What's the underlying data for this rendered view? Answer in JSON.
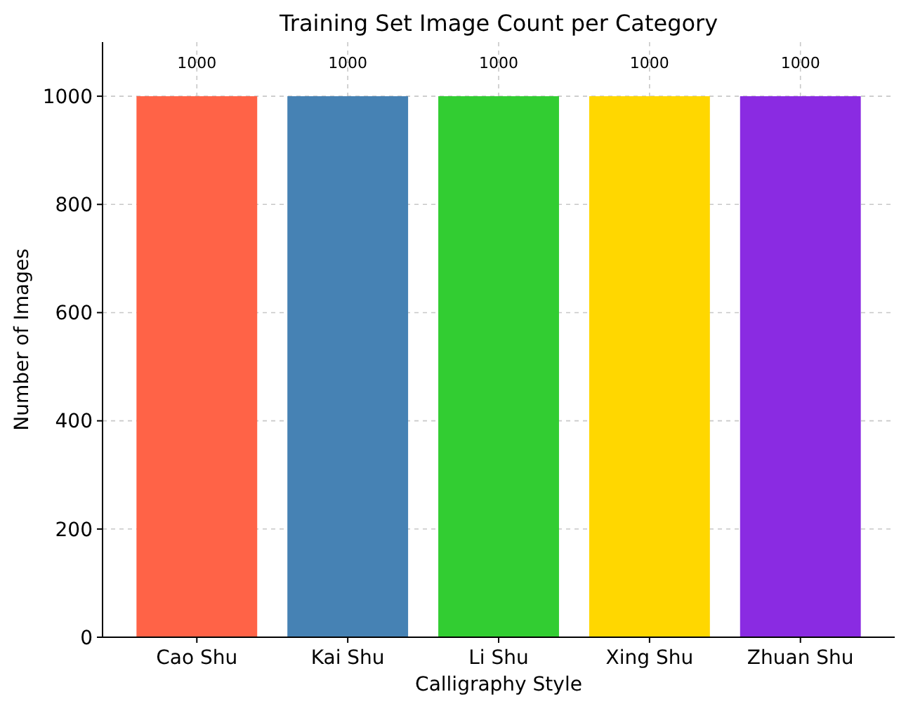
{
  "chart_data": {
    "type": "bar",
    "title": "Training Set Image Count per Category",
    "xlabel": "Calligraphy Style",
    "ylabel": "Number of Images",
    "categories": [
      "Cao Shu",
      "Kai Shu",
      "Li Shu",
      "Xing Shu",
      "Zhuan Shu"
    ],
    "values": [
      1000,
      1000,
      1000,
      1000,
      1000
    ],
    "colors": [
      "#ff6347",
      "#4682b4",
      "#32cd32",
      "#ffd700",
      "#8a2be2"
    ],
    "ylim": [
      0,
      1100
    ],
    "yticks": [
      0,
      200,
      400,
      600,
      800,
      1000
    ],
    "grid": true,
    "data_labels": true
  }
}
